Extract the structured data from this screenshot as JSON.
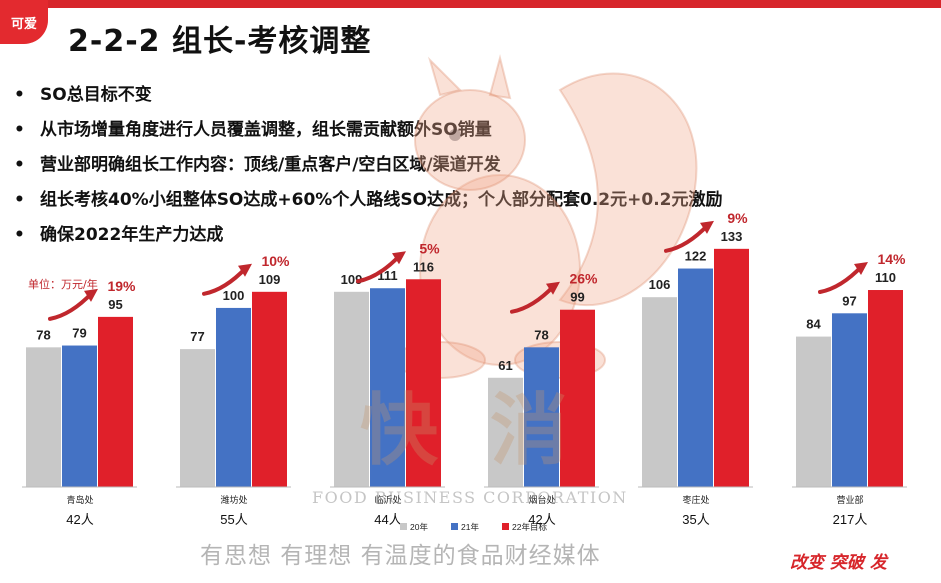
{
  "logo": {
    "text": "可爱"
  },
  "title": "2-2-2 组长-考核调整",
  "bullets": [
    "SO总目标不变",
    "从市场增量角度进行人员覆盖调整，组长需贡献额外SO销量",
    "营业部明确组长工作内容：顶线/重点客户/空白区域/渠道开发",
    "组长考核40%小组整体SO达成+60%个人路线SO达成；个人部分配套0.2元+0.2元激励",
    "确保2022年生产力达成"
  ],
  "bullet_marker": "•",
  "unit_label": "单位：万元/年",
  "chart_data": {
    "type": "bar",
    "categories": [
      "青岛处",
      "潍坊处",
      "临沂处",
      "烟台处",
      "枣庄处",
      "营业部"
    ],
    "headcounts": [
      "42人",
      "55人",
      "44人",
      "42人",
      "35人",
      "217人"
    ],
    "series": [
      {
        "name": "20年",
        "color": "#c8c8c8",
        "values": [
          78,
          77,
          109,
          61,
          106,
          84
        ]
      },
      {
        "name": "21年",
        "color": "#4472c4",
        "values": [
          79,
          100,
          111,
          78,
          122,
          97
        ]
      },
      {
        "name": "22年目标",
        "color": "#e0202a",
        "values": [
          95,
          109,
          116,
          99,
          133,
          110
        ]
      }
    ],
    "growth": [
      "19%",
      "10%",
      "5%",
      "26%",
      "9%",
      "14%"
    ],
    "ylim": [
      0,
      140
    ],
    "legend_position": "bottom"
  },
  "watermark": {
    "cn_left": "快",
    "cn_right": "消",
    "en": "FOOD BUSINESS CORPORATION",
    "slogan": "有思想 有理想 有温度的食品财经媒体"
  },
  "footer_slogan": "改变 突破 发",
  "colors": {
    "accent": "#d7262b",
    "arrow": "#c0272d"
  }
}
